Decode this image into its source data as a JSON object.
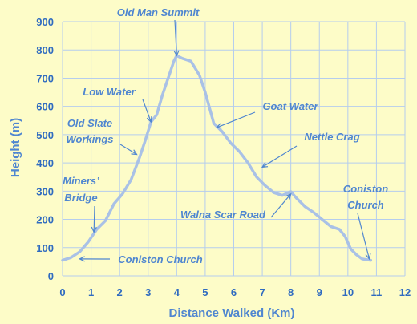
{
  "chart_data": {
    "type": "line",
    "title": "",
    "xlabel": "Distance Walked (Km)",
    "ylabel": "Height (m)",
    "xlim": [
      0,
      12
    ],
    "ylim": [
      0,
      900
    ],
    "x_ticks": [
      "0",
      "1",
      "2",
      "3",
      "4",
      "5",
      "6",
      "7",
      "8",
      "9",
      "10",
      "11",
      "12"
    ],
    "y_ticks": [
      "0",
      "100",
      "200",
      "300",
      "400",
      "500",
      "600",
      "700",
      "800",
      "900"
    ],
    "grid": true,
    "line_color": "#a9c1e6",
    "series": [
      {
        "x": [
          0.0,
          0.3,
          0.6,
          0.9,
          1.2,
          1.5,
          1.8,
          2.1,
          2.4,
          2.7,
          2.9,
          3.1,
          3.3,
          3.5,
          3.7,
          3.9,
          4.0,
          4.2,
          4.5,
          4.8,
          5.0,
          5.3,
          5.6,
          5.9,
          6.2,
          6.5,
          6.8,
          7.1,
          7.4,
          7.7,
          8.0,
          8.2,
          8.5,
          8.8,
          9.1,
          9.4,
          9.7,
          9.9,
          10.1,
          10.3,
          10.5,
          10.8
        ],
        "y": [
          55,
          65,
          85,
          120,
          165,
          195,
          255,
          290,
          340,
          420,
          480,
          545,
          570,
          640,
          700,
          760,
          780,
          770,
          760,
          710,
          650,
          540,
          510,
          470,
          440,
          400,
          350,
          320,
          295,
          285,
          298,
          275,
          245,
          225,
          200,
          175,
          165,
          140,
          95,
          75,
          60,
          55
        ]
      }
    ],
    "annotations": [
      {
        "text": "Old Man Summit",
        "point": [
          4.0,
          780
        ]
      },
      {
        "text": "Low Water",
        "point": [
          3.1,
          545
        ]
      },
      {
        "text": "Old Slate",
        "point": [
          2.6,
          430
        ]
      },
      {
        "text": "Workings",
        "point": [
          2.6,
          430
        ]
      },
      {
        "text": "Goat Water",
        "point": [
          5.4,
          525
        ]
      },
      {
        "text": "Nettle Crag",
        "point": [
          7.0,
          385
        ]
      },
      {
        "text": "Miners’",
        "point": [
          1.1,
          155
        ]
      },
      {
        "text": "Bridge",
        "point": [
          1.1,
          155
        ]
      },
      {
        "text": "Walna Scar Road",
        "point": [
          8.0,
          290
        ]
      },
      {
        "text": "Coniston",
        "point": [
          10.75,
          60
        ]
      },
      {
        "text": "Church",
        "point": [
          10.75,
          60
        ]
      },
      {
        "text": "Coniston Church",
        "point": [
          0.6,
          60
        ]
      }
    ]
  }
}
